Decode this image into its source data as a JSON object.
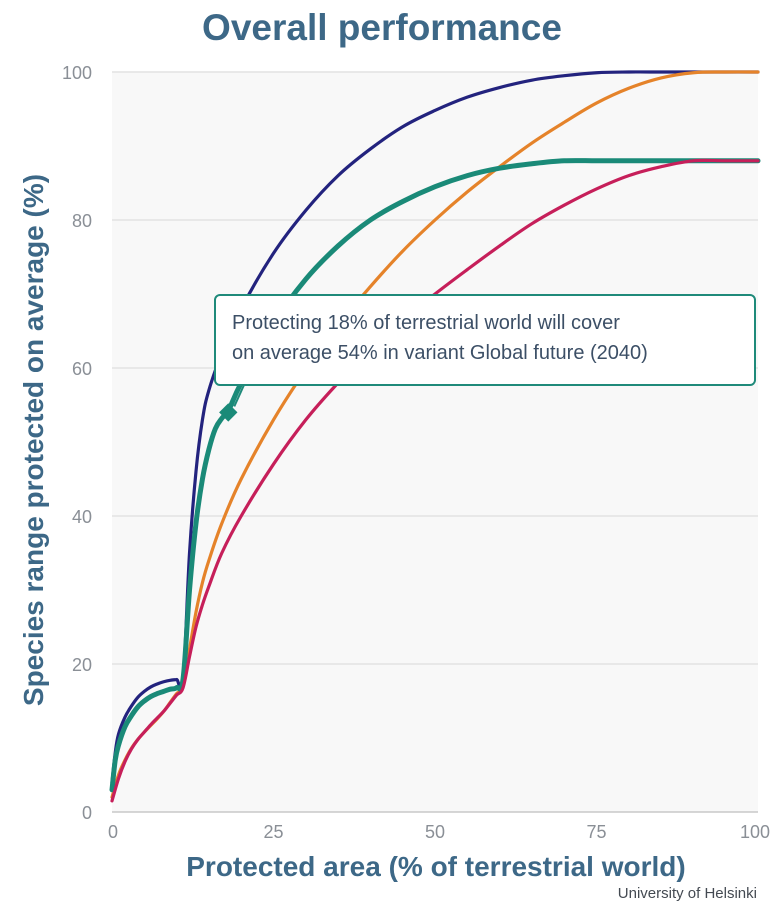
{
  "chart_data": {
    "type": "line",
    "title": "Overall performance",
    "xlabel": "Protected area (% of terrestrial world)",
    "ylabel": "Species range protected on average (%)",
    "xlim": [
      0,
      100
    ],
    "ylim": [
      0,
      100
    ],
    "xticks": [
      "0",
      "25",
      "50",
      "75",
      "100"
    ],
    "yticks": [
      "0",
      "20",
      "40",
      "60",
      "80",
      "100"
    ],
    "grid": "horizontal",
    "legend": "none",
    "series": [
      {
        "color": "#23237e",
        "x": [
          0,
          0.5,
          1,
          2,
          3,
          4,
          5,
          6,
          7,
          8,
          9,
          10,
          11,
          12,
          13,
          14,
          15,
          17,
          20,
          25,
          30,
          35,
          40,
          45,
          50,
          55,
          60,
          65,
          70,
          75,
          80,
          85,
          90,
          95,
          100
        ],
        "y": [
          4,
          8,
          10.5,
          12.8,
          14.3,
          15.5,
          16.3,
          16.9,
          17.3,
          17.6,
          17.8,
          17.9,
          18,
          35,
          46,
          53,
          57,
          62,
          68,
          75.5,
          81.3,
          86,
          89.6,
          92.6,
          94.8,
          96.6,
          97.9,
          98.9,
          99.5,
          99.9,
          100,
          100,
          100,
          100,
          100
        ]
      },
      {
        "color": "#e5832a",
        "x": [
          0,
          1,
          2,
          3,
          4,
          5,
          6,
          7,
          8,
          9,
          10,
          11,
          12,
          13,
          14,
          15,
          17,
          20,
          25,
          30,
          35,
          40,
          45,
          50,
          55,
          60,
          65,
          70,
          75,
          80,
          85,
          90,
          95,
          100
        ],
        "y": [
          2,
          5,
          7,
          8.6,
          9.8,
          10.8,
          11.7,
          12.6,
          13.6,
          14.8,
          16,
          17,
          22,
          27,
          31,
          34,
          39,
          45,
          53,
          59.8,
          65.8,
          71,
          75.8,
          80,
          83.8,
          87.2,
          90.4,
          93.2,
          95.8,
          97.8,
          99.2,
          99.9,
          100,
          100
        ]
      },
      {
        "color": "#1a8a78",
        "x": [
          0,
          0.5,
          1,
          2,
          3,
          4,
          5,
          6,
          7,
          8,
          9,
          10,
          11,
          12,
          13,
          14,
          15,
          16,
          17,
          18,
          20,
          25,
          30,
          35,
          40,
          45,
          50,
          55,
          60,
          65,
          70,
          75,
          80,
          85,
          90,
          95,
          100
        ],
        "y": [
          3,
          7,
          9,
          11.5,
          13,
          14.2,
          15,
          15.6,
          16,
          16.3,
          16.6,
          16.8,
          18,
          30,
          39,
          45,
          49,
          51.8,
          53.2,
          54.2,
          58,
          66,
          72,
          76.5,
          80,
          82.5,
          84.5,
          86,
          87,
          87.6,
          88,
          88,
          88,
          88,
          88,
          88,
          88
        ]
      },
      {
        "color": "#c61f5a",
        "x": [
          0,
          1,
          2,
          3,
          4,
          5,
          6,
          7,
          8,
          9,
          10,
          11,
          12,
          13,
          14,
          15,
          17,
          20,
          25,
          30,
          35,
          40,
          45,
          50,
          55,
          60,
          65,
          70,
          75,
          80,
          85,
          90,
          95,
          100
        ],
        "y": [
          1.5,
          4.5,
          6.8,
          8.5,
          9.8,
          10.8,
          11.8,
          12.7,
          13.6,
          14.7,
          15.8,
          16.8,
          21,
          25,
          28,
          30.5,
          35,
          40,
          47,
          53,
          58,
          62.5,
          66.5,
          70,
          73.3,
          76.5,
          79.5,
          82,
          84.2,
          86,
          87.2,
          88,
          88,
          88
        ]
      }
    ],
    "highlight_point": {
      "x": 18,
      "y": 54,
      "color": "#1a8a78"
    },
    "annotation": {
      "lines": [
        "Protecting 18% of terrestrial world will cover",
        "on average 54% in variant Global future (2040)"
      ]
    }
  },
  "credit": "University of Helsinki"
}
